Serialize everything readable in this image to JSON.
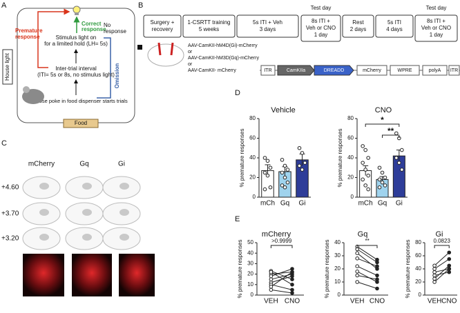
{
  "panel_labels": [
    "A",
    "B",
    "C",
    "D",
    "E"
  ],
  "panel_a": {
    "stimulus": [
      "Stimulus light on",
      "for a limited hold (LH= 5s)"
    ],
    "correct": [
      "Correct",
      "response"
    ],
    "premature": [
      "Premature",
      "response"
    ],
    "no_response": [
      "No",
      "response"
    ],
    "omission": "Omission",
    "iti": [
      "Inter-trial interval",
      "(ITI= 5s or 8s, no stimulus light)"
    ],
    "start": "Nose poke in food dispenser starts trials",
    "house_light": "House light",
    "food": "Food"
  },
  "panel_b": {
    "timeline": [
      {
        "lines": [
          "Surgery +",
          "recovery"
        ]
      },
      {
        "lines": [
          "1-CSRTT training",
          "5 weeks"
        ]
      },
      {
        "lines": [
          "5s ITI + Veh",
          "3 days"
        ]
      },
      {
        "label": "Test day",
        "lines": [
          "8s ITI +",
          "Veh or CNO",
          "1 day"
        ]
      },
      {
        "lines": [
          "Rest",
          "2 days"
        ]
      },
      {
        "lines": [
          "5s ITI",
          "4 days"
        ]
      },
      {
        "label": "Test day",
        "lines": [
          "8s ITI +",
          "Veh or CNO",
          "1 day"
        ]
      }
    ],
    "viruses": [
      "AAV-CamKII-hM4D(Gi)-mCherry",
      "or",
      "AAV-CamKII-hM3D(Gq)-mCherry",
      "or",
      "AAV-CamKII- mCherry"
    ],
    "construct": [
      "ITR",
      "CamKIIa",
      "DREADD",
      "mCherry",
      "WPRE",
      "polyA",
      "ITR"
    ]
  },
  "panel_c": {
    "columns": [
      "mCherry",
      "Gq",
      "Gi"
    ],
    "rows": [
      "+4.60",
      "+3.70",
      "+3.20"
    ]
  },
  "chart_data": [
    {
      "type": "bar",
      "title": "Vehicle",
      "ylabel": "% premature responses",
      "categories": [
        "mCh",
        "Gq",
        "Gi"
      ],
      "values": [
        27,
        26,
        38
      ],
      "errors": [
        6,
        5,
        6
      ],
      "colors": [
        "#ffffff",
        "#9fd3ee",
        "#2e3d99"
      ],
      "points": [
        [
          40,
          37,
          30,
          25,
          22,
          10,
          8
        ],
        [
          38,
          32,
          28,
          25,
          20,
          15,
          12,
          10
        ],
        [
          50,
          45,
          35,
          32,
          28
        ]
      ],
      "ylim": [
        0,
        80
      ],
      "yticks": [
        0,
        20,
        40,
        60,
        80
      ],
      "annotations": []
    },
    {
      "type": "bar",
      "title": "CNO",
      "ylabel": "% premature responses",
      "categories": [
        "mCh",
        "Gq",
        "Gi"
      ],
      "values": [
        27,
        18,
        42
      ],
      "errors": [
        5,
        3,
        6
      ],
      "colors": [
        "#ffffff",
        "#9fd3ee",
        "#2e3d99"
      ],
      "points": [
        [
          52,
          48,
          40,
          35,
          28,
          22,
          18,
          12,
          8
        ],
        [
          30,
          25,
          20,
          18,
          15,
          12,
          10
        ],
        [
          65,
          60,
          48,
          40,
          35,
          28
        ]
      ],
      "ylim": [
        0,
        80
      ],
      "yticks": [
        0,
        20,
        40,
        60,
        80
      ],
      "annotations": [
        "*",
        "**"
      ]
    },
    {
      "type": "paired",
      "title": "mCherry",
      "ylabel": "% premature responses",
      "categories": [
        "VEH",
        "CNO"
      ],
      "values": [
        [
          20,
          22
        ],
        [
          23,
          15
        ],
        [
          22,
          10
        ],
        [
          18,
          25
        ],
        [
          15,
          20
        ],
        [
          12,
          18
        ],
        [
          10,
          5
        ],
        [
          8,
          22
        ],
        [
          5,
          2
        ]
      ],
      "ylim": [
        0,
        50
      ],
      "yticks": [
        0,
        10,
        20,
        30,
        40,
        50
      ],
      "annotations": [
        ">0.9999"
      ]
    },
    {
      "type": "paired",
      "title": "Gq",
      "ylabel": "% premature responses",
      "categories": [
        "VEH",
        "CNO"
      ],
      "values": [
        [
          37,
          27
        ],
        [
          35,
          25
        ],
        [
          32,
          20
        ],
        [
          28,
          22
        ],
        [
          22,
          15
        ],
        [
          18,
          10
        ],
        [
          15,
          12
        ],
        [
          10,
          5
        ]
      ],
      "ylim": [
        0,
        40
      ],
      "yticks": [
        0,
        10,
        20,
        30,
        40
      ],
      "annotations": [
        "**"
      ]
    },
    {
      "type": "paired",
      "title": "Gi",
      "ylabel": "% premature responses",
      "categories": [
        "VEH",
        "CNO"
      ],
      "values": [
        [
          45,
          65
        ],
        [
          40,
          55
        ],
        [
          35,
          40
        ],
        [
          30,
          35
        ],
        [
          25,
          45
        ],
        [
          20,
          40
        ]
      ],
      "ylim": [
        0,
        80
      ],
      "yticks": [
        0,
        20,
        40,
        60,
        80
      ],
      "annotations": [
        "0.0823"
      ]
    }
  ]
}
